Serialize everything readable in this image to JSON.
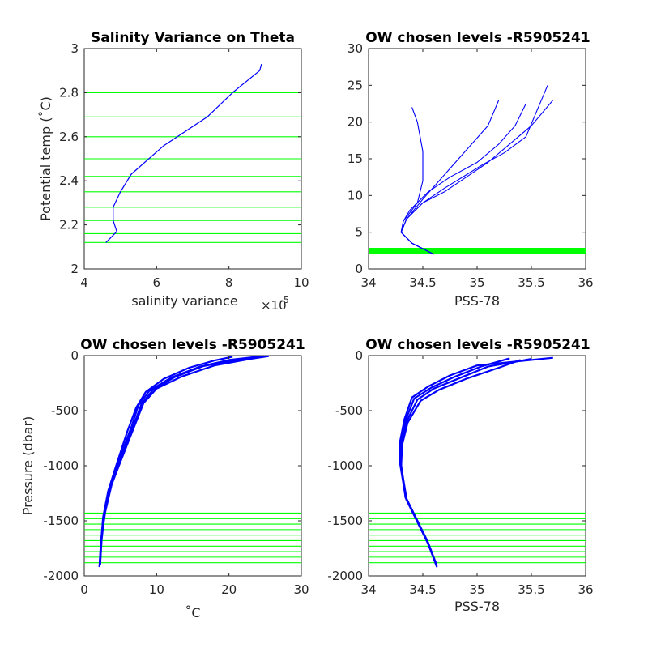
{
  "colors": {
    "series": "#0000ff",
    "levels": "#00ff00",
    "axis": "#262626"
  },
  "chart_data": [
    {
      "id": "p1",
      "type": "line",
      "title": "Salinity Variance on Theta",
      "xlabel": "salinity variance",
      "xlabel_exponent_base": "×10",
      "xlabel_exponent_power": "-5",
      "ylabel": "Potential temp (˚C)",
      "xlim": [
        4,
        10
      ],
      "ylim": [
        2,
        3
      ],
      "xticks": [
        4,
        6,
        8,
        10
      ],
      "xtick_labels": [
        "4",
        "6",
        "8",
        "10"
      ],
      "yticks": [
        2,
        2.2,
        2.4,
        2.6,
        2.8,
        3
      ],
      "ytick_labels": [
        "2",
        "2.2",
        "2.4",
        "2.6",
        "2.8",
        "3"
      ],
      "series": [
        {
          "x": [
            4.6,
            4.9,
            4.8,
            4.8,
            5.0,
            5.3,
            6.2,
            7.4,
            8.1,
            8.85,
            8.9
          ],
          "y": [
            2.12,
            2.17,
            2.22,
            2.28,
            2.35,
            2.43,
            2.56,
            2.69,
            2.8,
            2.9,
            2.93
          ]
        }
      ],
      "hlines": [
        2.12,
        2.16,
        2.22,
        2.28,
        2.35,
        2.42,
        2.5,
        2.6,
        2.69,
        2.8
      ]
    },
    {
      "id": "p2",
      "type": "line",
      "title": "OW chosen levels -R5905241",
      "xlabel": "PSS-78",
      "ylabel": "",
      "xlim": [
        34,
        36
      ],
      "ylim": [
        0,
        30
      ],
      "xticks": [
        34,
        34.5,
        35,
        35.5,
        36
      ],
      "xtick_labels": [
        "34",
        "34.5",
        "35",
        "35.5",
        "36"
      ],
      "yticks": [
        0,
        5,
        10,
        15,
        20,
        25,
        30
      ],
      "ytick_labels": [
        "0",
        "5",
        "10",
        "15",
        "20",
        "25",
        "30"
      ],
      "series": [
        {
          "x": [
            34.6,
            34.4,
            34.3,
            34.32,
            34.38,
            34.55,
            34.75,
            35.0,
            35.2,
            35.35,
            35.45
          ],
          "y": [
            2.0,
            3.5,
            5.0,
            6.5,
            8.0,
            10.5,
            12.5,
            14.5,
            17.0,
            19.5,
            22.5
          ]
        },
        {
          "x": [
            34.6,
            34.4,
            34.3,
            34.32,
            34.45,
            34.5,
            34.5,
            34.45,
            34.4
          ],
          "y": [
            2.0,
            3.5,
            5.0,
            6.5,
            9.0,
            12.0,
            16.0,
            20.0,
            22.0
          ]
        },
        {
          "x": [
            34.6,
            34.4,
            34.3,
            34.35,
            34.5,
            34.7,
            34.9,
            35.1,
            35.3,
            35.5,
            35.7
          ],
          "y": [
            2.0,
            3.5,
            5.0,
            6.8,
            9.0,
            10.5,
            12.5,
            14.5,
            17.0,
            19.5,
            23.0
          ]
        },
        {
          "x": [
            34.6,
            34.4,
            34.3,
            34.35,
            34.5,
            34.65,
            34.8,
            34.95,
            35.1,
            35.2
          ],
          "y": [
            2.0,
            3.5,
            5.0,
            6.8,
            9.5,
            12.0,
            14.5,
            17.0,
            19.5,
            23.0
          ]
        },
        {
          "x": [
            34.6,
            34.4,
            34.3,
            34.35,
            34.5,
            34.7,
            34.9,
            35.05,
            35.25,
            35.45,
            35.65
          ],
          "y": [
            2.0,
            3.5,
            5.0,
            6.8,
            9.0,
            11.0,
            12.8,
            14.2,
            15.8,
            18.0,
            25.0
          ]
        }
      ],
      "hlines": [
        2.12,
        2.16,
        2.22,
        2.28,
        2.35,
        2.42,
        2.5,
        2.6,
        2.69,
        2.8
      ]
    },
    {
      "id": "p3",
      "type": "line",
      "title": "OW chosen levels -R5905241",
      "xlabel": "˚C",
      "ylabel": "Pressure (dbar)",
      "xlim": [
        0,
        30
      ],
      "ylim": [
        -2000,
        0
      ],
      "xticks": [
        0,
        10,
        20,
        30
      ],
      "xtick_labels": [
        "0",
        "10",
        "20",
        "30"
      ],
      "yticks": [
        -2000,
        -1500,
        -1000,
        -500,
        0
      ],
      "ytick_labels": [
        "-2000",
        "-1500",
        "-1000",
        "-500",
        "0"
      ],
      "series": [
        {
          "x": [
            2.1,
            2.3,
            2.7,
            3.5,
            4.8,
            6.5,
            7.5,
            9.0,
            12.0,
            16.0,
            20.0,
            24.0
          ],
          "y": [
            -1920,
            -1700,
            -1450,
            -1200,
            -950,
            -650,
            -450,
            -320,
            -200,
            -100,
            -40,
            -10
          ]
        },
        {
          "x": [
            2.2,
            2.4,
            2.9,
            3.8,
            5.2,
            7.0,
            8.2,
            10.0,
            13.5,
            18.0,
            23.0,
            25.5
          ],
          "y": [
            -1900,
            -1650,
            -1420,
            -1170,
            -930,
            -630,
            -430,
            -300,
            -190,
            -90,
            -30,
            -5
          ]
        },
        {
          "x": [
            2.1,
            2.3,
            2.6,
            3.3,
            4.5,
            6.0,
            7.2,
            8.5,
            11.0,
            14.5,
            18.0,
            20.5
          ],
          "y": [
            -1920,
            -1720,
            -1470,
            -1230,
            -980,
            -680,
            -470,
            -330,
            -210,
            -110,
            -45,
            -10
          ]
        },
        {
          "x": [
            2.2,
            2.4,
            2.8,
            3.6,
            5.0,
            6.8,
            7.9,
            9.5,
            12.5,
            16.5,
            21.5,
            24.5
          ],
          "y": [
            -1880,
            -1680,
            -1440,
            -1190,
            -940,
            -640,
            -440,
            -310,
            -195,
            -95,
            -35,
            -8
          ]
        }
      ],
      "hlines": [
        -1430,
        -1480,
        -1530,
        -1580,
        -1630,
        -1680,
        -1730,
        -1780,
        -1830,
        -1880
      ]
    },
    {
      "id": "p4",
      "type": "line",
      "title": "OW chosen levels -R5905241",
      "xlabel": "PSS-78",
      "ylabel": "",
      "xlim": [
        34,
        36
      ],
      "ylim": [
        -2000,
        0
      ],
      "xticks": [
        34,
        34.5,
        35,
        35.5,
        36
      ],
      "xtick_labels": [
        "34",
        "34.5",
        "35",
        "35.5",
        "36"
      ],
      "yticks": [
        -2000,
        -1500,
        -1000,
        -500,
        0
      ],
      "ytick_labels": [
        "-2000",
        "-1500",
        "-1000",
        "-500",
        "0"
      ],
      "series": [
        {
          "x": [
            34.63,
            34.55,
            34.45,
            34.35,
            34.3,
            34.3,
            34.35,
            34.45,
            34.6,
            34.85,
            35.1,
            35.5
          ],
          "y": [
            -1910,
            -1700,
            -1500,
            -1300,
            -1000,
            -800,
            -600,
            -400,
            -300,
            -200,
            -100,
            -30
          ]
        },
        {
          "x": [
            34.62,
            34.54,
            34.44,
            34.34,
            34.29,
            34.29,
            34.33,
            34.4,
            34.55,
            34.75,
            35.0,
            35.7
          ],
          "y": [
            -1890,
            -1680,
            -1480,
            -1280,
            -980,
            -780,
            -580,
            -380,
            -280,
            -180,
            -90,
            -20
          ]
        },
        {
          "x": [
            34.63,
            34.55,
            34.45,
            34.35,
            34.3,
            34.31,
            34.36,
            34.48,
            34.65,
            34.9,
            35.2,
            35.4
          ],
          "y": [
            -1920,
            -1710,
            -1510,
            -1310,
            -1010,
            -810,
            -610,
            -410,
            -310,
            -210,
            -110,
            -40
          ]
        },
        {
          "x": [
            34.62,
            34.54,
            34.44,
            34.34,
            34.3,
            34.3,
            34.34,
            34.42,
            34.58,
            34.8,
            35.05,
            35.3
          ],
          "y": [
            -1880,
            -1690,
            -1490,
            -1290,
            -990,
            -790,
            -590,
            -390,
            -290,
            -190,
            -95,
            -25
          ]
        }
      ],
      "hlines": [
        -1430,
        -1480,
        -1530,
        -1580,
        -1630,
        -1680,
        -1730,
        -1780,
        -1830,
        -1880
      ]
    }
  ]
}
